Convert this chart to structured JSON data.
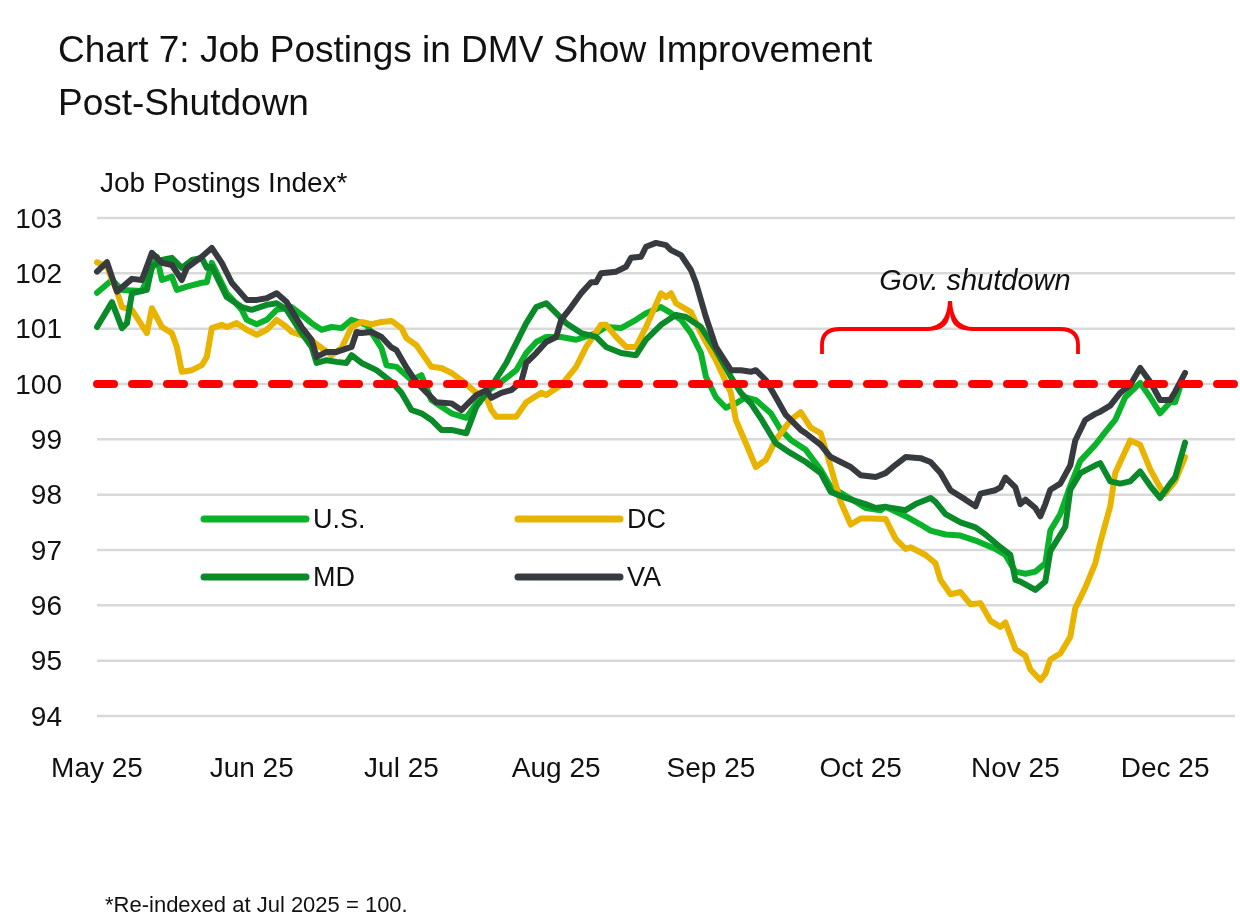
{
  "chart_data": {
    "type": "line",
    "title": "Chart 7: Job Postings in DMV Show Improvement Post-Shutdown",
    "ylabel": "Job Postings Index*",
    "annotations": [
      "Gov. shutdown",
      "*Re-indexed at Jul 2025 = 100."
    ],
    "xlim": [
      "2025-05-01",
      "2025-12-15"
    ],
    "xticks": [
      {
        "value": "2025-05-01",
        "label": "May 25"
      },
      {
        "value": "2025-06-01",
        "label": "Jun 25"
      },
      {
        "value": "2025-07-01",
        "label": "Jul 25"
      },
      {
        "value": "2025-08-01",
        "label": "Aug 25"
      },
      {
        "value": "2025-09-01",
        "label": "Sep 25"
      },
      {
        "value": "2025-10-01",
        "label": "Oct 25"
      },
      {
        "value": "2025-11-01",
        "label": "Nov 25"
      },
      {
        "value": "2025-12-01",
        "label": "Dec 25"
      }
    ],
    "ylim": [
      94,
      103
    ],
    "yticks": [
      94,
      95,
      96,
      97,
      98,
      99,
      100,
      101,
      102,
      103
    ],
    "grid": "y",
    "legend": "bottom left",
    "ref_lines": [
      {
        "axis": "y",
        "value": 100,
        "color": "#ff0000",
        "line_style": "dashed"
      }
    ],
    "series": [
      {
        "name": "U.S.",
        "color": "#0bb32a",
        "x": [
          "2025-05-01",
          "2025-05-04",
          "2025-05-06",
          "2025-05-10",
          "2025-05-13",
          "2025-05-14",
          "2025-05-16",
          "2025-05-17",
          "2025-05-19",
          "2025-05-22",
          "2025-05-23",
          "2025-05-24",
          "2025-05-27",
          "2025-05-30",
          "2025-05-31",
          "2025-06-02",
          "2025-06-04",
          "2025-06-06",
          "2025-06-09",
          "2025-06-11",
          "2025-06-13",
          "2025-06-15",
          "2025-06-17",
          "2025-06-19",
          "2025-06-21",
          "2025-06-24",
          "2025-06-27",
          "2025-06-28",
          "2025-06-30",
          "2025-07-03",
          "2025-07-05",
          "2025-07-07",
          "2025-07-09",
          "2025-07-11",
          "2025-07-14",
          "2025-07-16",
          "2025-07-18",
          "2025-07-21",
          "2025-07-24",
          "2025-07-26",
          "2025-07-28",
          "2025-07-30",
          "2025-08-02",
          "2025-08-05",
          "2025-08-09",
          "2025-08-11",
          "2025-08-14",
          "2025-08-17",
          "2025-08-19",
          "2025-08-22",
          "2025-08-24",
          "2025-08-26",
          "2025-08-28",
          "2025-08-30",
          "2025-08-31",
          "2025-09-02",
          "2025-09-04",
          "2025-09-06",
          "2025-09-08",
          "2025-09-10",
          "2025-09-13",
          "2025-09-15",
          "2025-09-17",
          "2025-09-20",
          "2025-09-23",
          "2025-09-25",
          "2025-09-28",
          "2025-10-02",
          "2025-10-05",
          "2025-10-06",
          "2025-10-10",
          "2025-10-13",
          "2025-10-15",
          "2025-10-18",
          "2025-10-21",
          "2025-10-24",
          "2025-10-28",
          "2025-10-30",
          "2025-11-01",
          "2025-11-03",
          "2025-11-05",
          "2025-11-07",
          "2025-11-08",
          "2025-11-10",
          "2025-11-12",
          "2025-11-14",
          "2025-11-17",
          "2025-11-19",
          "2025-11-21",
          "2025-11-23",
          "2025-11-26",
          "2025-11-28",
          "2025-11-30",
          "2025-12-02",
          "2025-12-03",
          "2025-12-04"
        ],
        "values": [
          101.65,
          101.88,
          101.7,
          101.68,
          102.3,
          101.88,
          101.94,
          101.7,
          101.76,
          101.83,
          101.84,
          102.19,
          101.64,
          101.34,
          101.16,
          101.08,
          101.16,
          101.34,
          101.39,
          101.25,
          101.1,
          100.98,
          101.03,
          101.01,
          101.16,
          101.07,
          100.65,
          100.34,
          100.31,
          100.07,
          100.16,
          99.71,
          99.59,
          99.47,
          99.39,
          99.65,
          99.86,
          100.04,
          100.25,
          100.56,
          100.76,
          100.85,
          100.85,
          100.8,
          100.92,
          101.03,
          101.01,
          101.16,
          101.28,
          101.39,
          101.28,
          101.16,
          100.92,
          100.56,
          100.13,
          99.76,
          99.57,
          99.65,
          99.76,
          99.71,
          99.47,
          99.17,
          98.99,
          98.81,
          98.45,
          98.14,
          97.98,
          97.76,
          97.72,
          97.78,
          97.61,
          97.46,
          97.35,
          97.28,
          97.26,
          97.17,
          97.02,
          96.91,
          96.61,
          96.57,
          96.61,
          96.76,
          97.35,
          97.65,
          98.16,
          98.61,
          98.9,
          99.13,
          99.35,
          99.76,
          100.02,
          99.76,
          99.47,
          99.67,
          99.67,
          99.95
        ]
      },
      {
        "name": "DC",
        "color": "#e8b400",
        "x": [
          "2025-05-01",
          "2025-05-03",
          "2025-05-05",
          "2025-05-06",
          "2025-05-08",
          "2025-05-11",
          "2025-05-12",
          "2025-05-14",
          "2025-05-16",
          "2025-05-17",
          "2025-05-18",
          "2025-05-20",
          "2025-05-22",
          "2025-05-23",
          "2025-05-24",
          "2025-05-26",
          "2025-05-27",
          "2025-05-29",
          "2025-05-31",
          "2025-06-02",
          "2025-06-04",
          "2025-06-06",
          "2025-06-08",
          "2025-06-09",
          "2025-06-12",
          "2025-06-15",
          "2025-06-17",
          "2025-06-19",
          "2025-06-21",
          "2025-06-23",
          "2025-06-25",
          "2025-06-27",
          "2025-06-29",
          "2025-07-01",
          "2025-07-02",
          "2025-07-04",
          "2025-07-07",
          "2025-07-09",
          "2025-07-11",
          "2025-07-13",
          "2025-07-16",
          "2025-07-18",
          "2025-07-19",
          "2025-07-20",
          "2025-07-24",
          "2025-07-26",
          "2025-07-29",
          "2025-07-30",
          "2025-08-02",
          "2025-08-05",
          "2025-08-07",
          "2025-08-10",
          "2025-08-11",
          "2025-08-13",
          "2025-08-15",
          "2025-08-17",
          "2025-08-19",
          "2025-08-22",
          "2025-08-23",
          "2025-08-24",
          "2025-08-25",
          "2025-08-28",
          "2025-08-30",
          "2025-09-02",
          "2025-09-05",
          "2025-09-06",
          "2025-09-08",
          "2025-09-10",
          "2025-09-12",
          "2025-09-14",
          "2025-09-17",
          "2025-09-19",
          "2025-09-21",
          "2025-09-23",
          "2025-09-25",
          "2025-09-27",
          "2025-09-29",
          "2025-10-01",
          "2025-10-03",
          "2025-10-06",
          "2025-10-08",
          "2025-10-10",
          "2025-10-11",
          "2025-10-14",
          "2025-10-16",
          "2025-10-17",
          "2025-10-19",
          "2025-10-21",
          "2025-10-23",
          "2025-10-25",
          "2025-10-27",
          "2025-10-29",
          "2025-10-30",
          "2025-11-01",
          "2025-11-03",
          "2025-11-04",
          "2025-11-06",
          "2025-11-07",
          "2025-11-08",
          "2025-11-10",
          "2025-11-12",
          "2025-11-13",
          "2025-11-15",
          "2025-11-17",
          "2025-11-18",
          "2025-11-20",
          "2025-11-21",
          "2025-11-24",
          "2025-11-26",
          "2025-11-28",
          "2025-11-30",
          "2025-12-01",
          "2025-12-03",
          "2025-12-05"
        ],
        "values": [
          102.2,
          102.12,
          101.67,
          101.39,
          101.34,
          100.92,
          101.37,
          101.03,
          100.92,
          100.67,
          100.22,
          100.25,
          100.34,
          100.49,
          101.01,
          101.07,
          101.03,
          101.1,
          100.98,
          100.89,
          100.98,
          101.16,
          101.03,
          100.94,
          100.85,
          100.65,
          100.52,
          100.65,
          101.03,
          101.12,
          101.08,
          101.12,
          101.14,
          101.01,
          100.83,
          100.7,
          100.31,
          100.29,
          100.2,
          100.07,
          99.84,
          99.76,
          99.53,
          99.41,
          99.41,
          99.67,
          99.84,
          99.8,
          99.98,
          100.31,
          100.67,
          101.07,
          101.07,
          100.85,
          100.67,
          100.67,
          101.03,
          101.64,
          101.57,
          101.64,
          101.46,
          101.3,
          100.92,
          100.43,
          99.84,
          99.35,
          98.93,
          98.5,
          98.63,
          98.99,
          99.35,
          99.49,
          99.21,
          99.11,
          98.5,
          97.87,
          97.46,
          97.57,
          97.57,
          97.56,
          97.2,
          97.02,
          97.05,
          96.91,
          96.76,
          96.46,
          96.2,
          96.24,
          96.02,
          96.04,
          95.72,
          95.61,
          95.69,
          95.21,
          95.09,
          94.84,
          94.65,
          94.76,
          95.02,
          95.13,
          95.43,
          95.95,
          96.32,
          96.76,
          97.13,
          97.79,
          98.39,
          98.98,
          98.9,
          98.46,
          98.13,
          98.02,
          98.24,
          98.68
        ]
      },
      {
        "name": "MD",
        "color": "#0a8a28",
        "x": [
          "2025-05-01",
          "2025-05-04",
          "2025-05-06",
          "2025-05-07",
          "2025-05-08",
          "2025-05-11",
          "2025-05-12",
          "2025-05-14",
          "2025-05-16",
          "2025-05-18",
          "2025-05-20",
          "2025-05-22",
          "2025-05-23",
          "2025-05-24",
          "2025-05-27",
          "2025-05-30",
          "2025-06-01",
          "2025-06-04",
          "2025-06-06",
          "2025-06-08",
          "2025-06-11",
          "2025-06-13",
          "2025-06-14",
          "2025-06-16",
          "2025-06-18",
          "2025-06-20",
          "2025-06-21",
          "2025-06-23",
          "2025-06-26",
          "2025-06-29",
          "2025-07-01",
          "2025-07-03",
          "2025-07-05",
          "2025-07-07",
          "2025-07-09",
          "2025-07-11",
          "2025-07-14",
          "2025-07-16",
          "2025-07-19",
          "2025-07-22",
          "2025-07-24",
          "2025-07-26",
          "2025-07-28",
          "2025-07-30",
          "2025-08-01",
          "2025-08-03",
          "2025-08-06",
          "2025-08-09",
          "2025-08-11",
          "2025-08-14",
          "2025-08-17",
          "2025-08-19",
          "2025-08-22",
          "2025-08-25",
          "2025-08-27",
          "2025-08-30",
          "2025-09-02",
          "2025-09-05",
          "2025-09-07",
          "2025-09-09",
          "2025-09-11",
          "2025-09-14",
          "2025-09-17",
          "2025-09-20",
          "2025-09-23",
          "2025-09-25",
          "2025-09-28",
          "2025-10-02",
          "2025-10-04",
          "2025-10-06",
          "2025-10-10",
          "2025-10-12",
          "2025-10-15",
          "2025-10-16",
          "2025-10-18",
          "2025-10-21",
          "2025-10-24",
          "2025-10-26",
          "2025-10-29",
          "2025-10-31",
          "2025-11-01",
          "2025-11-02",
          "2025-11-05",
          "2025-11-07",
          "2025-11-08",
          "2025-11-11",
          "2025-11-12",
          "2025-11-14",
          "2025-11-17",
          "2025-11-18",
          "2025-11-20",
          "2025-11-22",
          "2025-11-24",
          "2025-11-26",
          "2025-11-28",
          "2025-11-30",
          "2025-12-02",
          "2025-12-03",
          "2025-12-05"
        ],
        "values": [
          101.03,
          101.48,
          101.01,
          101.1,
          101.64,
          101.7,
          102.12,
          102.24,
          102.28,
          102.1,
          102.24,
          102.28,
          102.1,
          102.12,
          101.57,
          101.39,
          101.34,
          101.43,
          101.46,
          101.34,
          100.92,
          100.67,
          100.38,
          100.43,
          100.4,
          100.38,
          100.52,
          100.38,
          100.25,
          100.04,
          99.84,
          99.53,
          99.47,
          99.35,
          99.17,
          99.17,
          99.11,
          99.59,
          99.95,
          100.38,
          100.74,
          101.1,
          101.39,
          101.46,
          101.28,
          101.1,
          100.92,
          100.85,
          100.67,
          100.56,
          100.52,
          100.8,
          101.07,
          101.25,
          101.21,
          101.03,
          100.61,
          100.13,
          99.84,
          99.65,
          99.38,
          98.93,
          98.75,
          98.59,
          98.39,
          98.05,
          97.94,
          97.83,
          97.76,
          97.78,
          97.72,
          97.83,
          97.94,
          97.87,
          97.65,
          97.5,
          97.41,
          97.28,
          97.05,
          96.91,
          96.46,
          96.43,
          96.28,
          96.43,
          96.98,
          97.42,
          98.09,
          98.39,
          98.53,
          98.57,
          98.24,
          98.2,
          98.24,
          98.42,
          98.16,
          97.94,
          98.2,
          98.31,
          98.94
        ]
      },
      {
        "name": "VA",
        "color": "#373a3f",
        "x": [
          "2025-05-01",
          "2025-05-03",
          "2025-05-05",
          "2025-05-08",
          "2025-05-10",
          "2025-05-12",
          "2025-05-14",
          "2025-05-16",
          "2025-05-18",
          "2025-05-19",
          "2025-05-22",
          "2025-05-24",
          "2025-05-26",
          "2025-05-28",
          "2025-05-31",
          "2025-06-02",
          "2025-06-04",
          "2025-06-06",
          "2025-06-08",
          "2025-06-11",
          "2025-06-13",
          "2025-06-14",
          "2025-06-16",
          "2025-06-18",
          "2025-06-21",
          "2025-06-22",
          "2025-06-23",
          "2025-06-25",
          "2025-06-27",
          "2025-06-29",
          "2025-06-30",
          "2025-07-02",
          "2025-07-04",
          "2025-07-08",
          "2025-07-11",
          "2025-07-13",
          "2025-07-16",
          "2025-07-18",
          "2025-07-19",
          "2025-07-21",
          "2025-07-23",
          "2025-07-25",
          "2025-07-26",
          "2025-07-28",
          "2025-07-30",
          "2025-08-01",
          "2025-08-02",
          "2025-08-04",
          "2025-08-06",
          "2025-08-08",
          "2025-08-09",
          "2025-08-10",
          "2025-08-13",
          "2025-08-15",
          "2025-08-16",
          "2025-08-18",
          "2025-08-19",
          "2025-08-21",
          "2025-08-23",
          "2025-08-24",
          "2025-08-26",
          "2025-08-28",
          "2025-08-29",
          "2025-08-31",
          "2025-09-02",
          "2025-09-05",
          "2025-09-07",
          "2025-09-09",
          "2025-09-10",
          "2025-09-12",
          "2025-09-14",
          "2025-09-16",
          "2025-09-19",
          "2025-09-20",
          "2025-09-23",
          "2025-09-25",
          "2025-09-29",
          "2025-10-01",
          "2025-10-04",
          "2025-10-06",
          "2025-10-08",
          "2025-10-10",
          "2025-10-13",
          "2025-10-15",
          "2025-10-17",
          "2025-10-19",
          "2025-10-22",
          "2025-10-24",
          "2025-10-25",
          "2025-10-28",
          "2025-10-29",
          "2025-10-30",
          "2025-11-01",
          "2025-11-02",
          "2025-11-03",
          "2025-11-05",
          "2025-11-06",
          "2025-11-07",
          "2025-11-08",
          "2025-11-10",
          "2025-11-12",
          "2025-11-13",
          "2025-11-15",
          "2025-11-17",
          "2025-11-18",
          "2025-11-20",
          "2025-11-22",
          "2025-11-24",
          "2025-11-26",
          "2025-11-28",
          "2025-11-30",
          "2025-12-02",
          "2025-12-03",
          "2025-12-05"
        ],
        "values": [
          102.03,
          102.2,
          101.67,
          101.9,
          101.88,
          102.37,
          102.19,
          102.15,
          101.88,
          102.1,
          102.3,
          102.46,
          102.19,
          101.83,
          101.52,
          101.52,
          101.55,
          101.64,
          101.48,
          101.03,
          100.8,
          100.49,
          100.58,
          100.58,
          100.67,
          100.94,
          100.92,
          100.94,
          100.85,
          100.66,
          100.61,
          100.3,
          100.03,
          99.67,
          99.65,
          99.53,
          99.8,
          99.89,
          99.75,
          99.84,
          99.89,
          100.04,
          100.38,
          100.56,
          100.76,
          100.85,
          101.16,
          101.39,
          101.64,
          101.84,
          101.84,
          102.0,
          102.03,
          102.12,
          102.28,
          102.3,
          102.48,
          102.55,
          102.51,
          102.42,
          102.33,
          102.06,
          101.83,
          101.21,
          100.67,
          100.25,
          100.25,
          100.22,
          100.25,
          100.07,
          99.76,
          99.44,
          99.17,
          99.11,
          98.9,
          98.68,
          98.5,
          98.35,
          98.32,
          98.39,
          98.54,
          98.68,
          98.66,
          98.59,
          98.39,
          98.08,
          97.91,
          97.79,
          98.02,
          98.08,
          98.13,
          98.31,
          98.13,
          97.83,
          97.91,
          97.76,
          97.61,
          97.83,
          98.09,
          98.2,
          98.53,
          98.98,
          99.35,
          99.46,
          99.5,
          99.61,
          99.84,
          99.98,
          100.29,
          100.04,
          99.71,
          99.71,
          99.86,
          100.2
        ]
      }
    ]
  }
}
